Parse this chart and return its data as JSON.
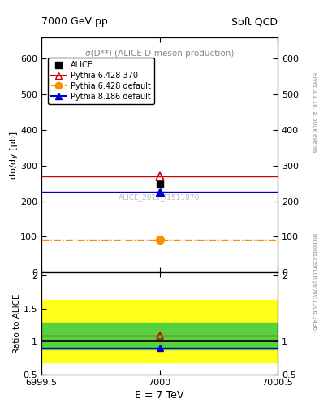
{
  "title_left": "7000 GeV pp",
  "title_right": "Soft QCD",
  "inner_title": "σ(D**) (ALICE D-meson production)",
  "ylabel_main": "dσ/dy [μb]",
  "ylabel_ratio": "Ratio to ALICE",
  "xlabel": "E = 7 TeV",
  "watermark": "ALICE_2017_I1511870",
  "right_label_top": "Rivet 3.1.10, ≥ 500k events",
  "right_label_bot": "mcplots.cern.ch [arXiv:1306.3436]",
  "xlim": [
    6999.5,
    7000.5
  ],
  "ylim_main": [
    0,
    660
  ],
  "ylim_ratio": [
    0.5,
    2.05
  ],
  "yticks_main": [
    0,
    100,
    200,
    300,
    400,
    500,
    600
  ],
  "xticks": [
    6999.5,
    7000.0,
    7000.5
  ],
  "alice_x": 7000.0,
  "alice_y": 249.0,
  "alice_color": "#000000",
  "pythia1_x": 7000.0,
  "pythia1_y": 270.0,
  "pythia1_color": "#cc0000",
  "pythia1_label": "Pythia 6.428 370",
  "pythia2_x": 7000.0,
  "pythia2_y": 91.0,
  "pythia2_color": "#ff8c00",
  "pythia2_label": "Pythia 6.428 default",
  "pythia3_x": 7000.0,
  "pythia3_y": 226.0,
  "pythia3_color": "#0000cc",
  "pythia3_label": "Pythia 8.186 default",
  "ratio_pythia1": 1.085,
  "ratio_pythia3": 0.907,
  "ratio_band_yellow_low": 0.68,
  "ratio_band_yellow_high": 1.63,
  "ratio_band_green_low": 0.875,
  "ratio_band_green_high": 1.29,
  "ratio_line": 1.0,
  "alice_label": "ALICE"
}
